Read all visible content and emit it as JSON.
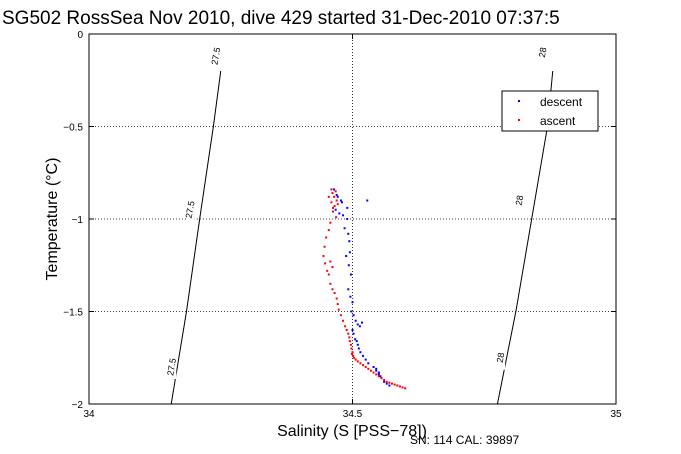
{
  "chart_data": {
    "type": "scatter",
    "title": "SG502 RossSea Nov 2010, dive 429 started 31-Dec-2010 07:37:5",
    "xlabel": "Salinity (S [PSS−78])",
    "ylabel": "Temperature (°C)",
    "xlim": [
      34,
      35
    ],
    "ylim": [
      -2,
      0
    ],
    "xticks": [
      "34",
      "34.5",
      "35"
    ],
    "yticks": [
      "0",
      "−0.5",
      "−1",
      "−1.5",
      "−2"
    ],
    "grid": true,
    "legend": "top-right",
    "footer": "SN: 114  CAL: 39897",
    "density_contours": [
      {
        "label": "27.5",
        "points": [
          [
            34.156,
            -2.0
          ],
          [
            34.185,
            -1.5
          ],
          [
            34.21,
            -1.0
          ],
          [
            34.236,
            -0.5
          ],
          [
            34.25,
            -0.2
          ]
        ],
        "label_positions": [
          [
            34.158,
            -1.8
          ],
          [
            34.193,
            -0.95
          ],
          [
            34.242,
            -0.12
          ]
        ]
      },
      {
        "label": "28",
        "points": [
          [
            34.775,
            -2.0
          ],
          [
            34.81,
            -1.5
          ],
          [
            34.84,
            -1.0
          ],
          [
            34.87,
            -0.5
          ],
          [
            34.88,
            -0.2
          ]
        ],
        "label_positions": [
          [
            34.782,
            -1.75
          ],
          [
            34.818,
            -0.9
          ],
          [
            34.862,
            -0.1
          ]
        ]
      }
    ],
    "series": [
      {
        "name": "descent",
        "color": "#0000ff",
        "x": [
          34.465,
          34.47,
          34.472,
          34.478,
          34.48,
          34.49,
          34.528,
          34.468,
          34.475,
          34.482,
          34.49,
          34.485,
          34.492,
          34.494,
          34.495,
          34.488,
          34.493,
          34.497,
          34.492,
          34.496,
          34.5,
          34.498,
          34.502,
          34.506,
          34.51,
          34.514,
          34.518,
          34.5,
          34.502,
          34.505,
          34.508,
          34.51,
          34.512,
          34.515,
          34.52,
          34.525,
          34.53,
          34.54,
          34.545,
          34.55,
          34.555,
          34.56,
          34.565,
          34.57,
          34.545,
          34.55,
          34.553
        ],
        "y": [
          -0.84,
          -0.87,
          -0.88,
          -0.9,
          -0.91,
          -0.94,
          -0.9,
          -0.95,
          -0.97,
          -0.98,
          -1.0,
          -1.05,
          -1.08,
          -1.12,
          -1.18,
          -1.2,
          -1.25,
          -1.3,
          -1.38,
          -1.42,
          -1.45,
          -1.5,
          -1.52,
          -1.55,
          -1.57,
          -1.58,
          -1.56,
          -1.6,
          -1.62,
          -1.65,
          -1.66,
          -1.68,
          -1.7,
          -1.72,
          -1.74,
          -1.76,
          -1.78,
          -1.8,
          -1.82,
          -1.84,
          -1.86,
          -1.88,
          -1.89,
          -1.9,
          -1.81,
          -1.83,
          -1.85
        ]
      },
      {
        "name": "ascent",
        "color": "#ff0000",
        "x": [
          34.46,
          34.462,
          34.465,
          34.468,
          34.47,
          34.466,
          34.463,
          34.469,
          34.472,
          34.458,
          34.455,
          34.45,
          34.447,
          34.445,
          34.448,
          34.452,
          34.455,
          34.458,
          34.462,
          34.466,
          34.47,
          34.472,
          34.474,
          34.478,
          34.482,
          34.486,
          34.489,
          34.492,
          34.494,
          34.495,
          34.497,
          34.498,
          34.5,
          34.499,
          34.501,
          34.503,
          34.506,
          34.51,
          34.515,
          34.52,
          34.525,
          34.53,
          34.535,
          34.54,
          34.545,
          34.55,
          34.555,
          34.56,
          34.565,
          34.57,
          34.575,
          34.58,
          34.585,
          34.59,
          34.595,
          34.6,
          34.455,
          34.46,
          34.463,
          34.458,
          34.462
        ],
        "y": [
          -0.84,
          -0.86,
          -0.88,
          -0.85,
          -0.9,
          -0.93,
          -0.96,
          -0.99,
          -0.92,
          -1.02,
          -1.06,
          -1.1,
          -1.15,
          -1.2,
          -1.24,
          -1.28,
          -1.3,
          -1.35,
          -1.38,
          -1.4,
          -1.43,
          -1.46,
          -1.49,
          -1.52,
          -1.55,
          -1.58,
          -1.6,
          -1.62,
          -1.64,
          -1.66,
          -1.68,
          -1.7,
          -1.72,
          -1.73,
          -1.74,
          -1.75,
          -1.76,
          -1.77,
          -1.78,
          -1.79,
          -1.8,
          -1.81,
          -1.82,
          -1.83,
          -1.84,
          -1.85,
          -1.86,
          -1.87,
          -1.88,
          -1.885,
          -1.89,
          -1.895,
          -1.9,
          -1.905,
          -1.91,
          -1.915,
          -0.88,
          -0.91,
          -0.94,
          -1.23,
          -1.26
        ]
      }
    ]
  }
}
